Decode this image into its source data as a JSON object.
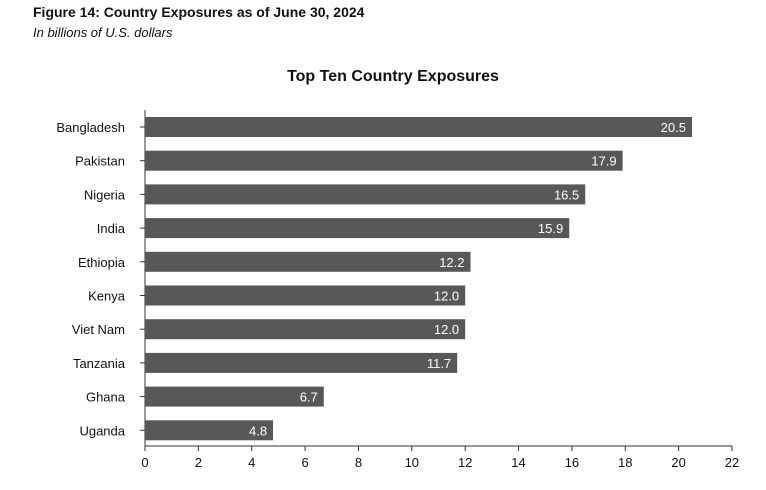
{
  "figure": {
    "title": "Figure 14: Country Exposures as of June 30, 2024",
    "subtitle": "In billions of U.S. dollars"
  },
  "chart_data": {
    "type": "bar",
    "orientation": "horizontal",
    "title": "Top Ten Country Exposures",
    "categories": [
      "Bangladesh",
      "Pakistan",
      "Nigeria",
      "India",
      "Ethiopia",
      "Kenya",
      "Viet Nam",
      "Tanzania",
      "Ghana",
      "Uganda"
    ],
    "values": [
      20.5,
      17.9,
      16.5,
      15.9,
      12.2,
      12.0,
      12.0,
      11.7,
      6.7,
      4.8
    ],
    "value_labels": [
      "20.5",
      "17.9",
      "16.5",
      "15.9",
      "12.2",
      "12.0",
      "12.0",
      "11.7",
      "6.7",
      "4.8"
    ],
    "xlim": [
      0,
      22
    ],
    "xticks": [
      0,
      2,
      4,
      6,
      8,
      10,
      12,
      14,
      16,
      18,
      20,
      22
    ],
    "xlabel": "",
    "ylabel": "",
    "colors": {
      "bar": "#58585a",
      "data_label": "#ffffff"
    },
    "grid": false
  }
}
